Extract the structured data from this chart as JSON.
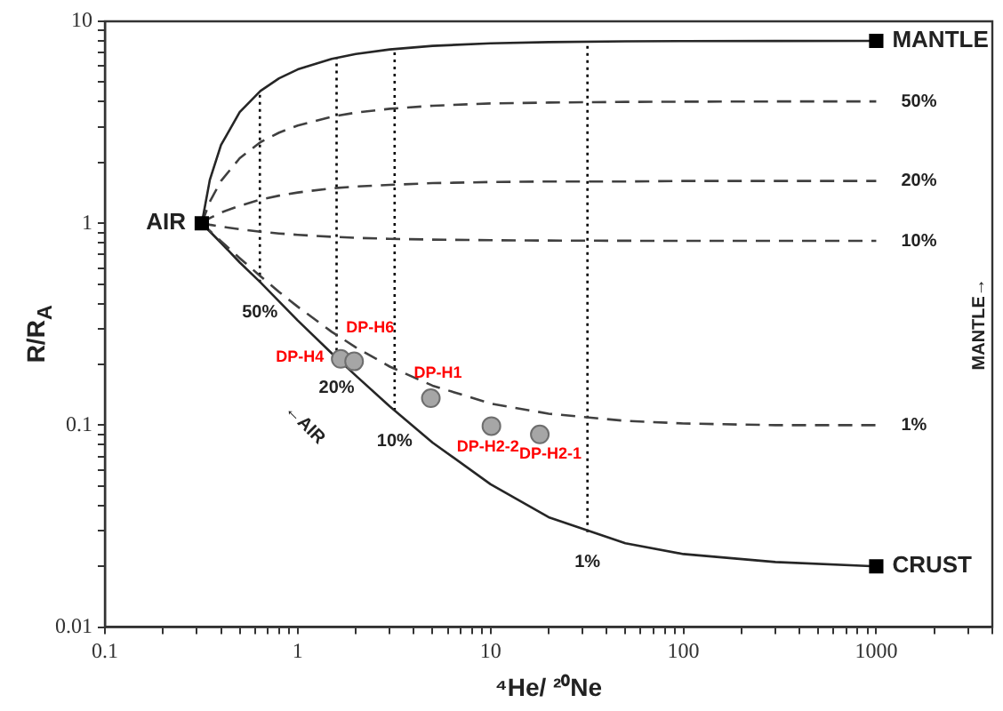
{
  "chart_data": {
    "type": "line",
    "xlabel": "⁴He/ ²⁰Ne",
    "ylabel": "R/R$_{A}$",
    "log": "xy",
    "grid": false,
    "legend": false,
    "xlim": [
      0.1,
      4000
    ],
    "ylim": [
      0.01,
      10
    ],
    "xticks": [
      0.1,
      {
        "value": 0.2,
        "label": null
      },
      {
        "value": 0.3,
        "label": null
      },
      {
        "value": 0.4,
        "label": null
      },
      {
        "value": 0.5,
        "label": null
      },
      {
        "value": 0.6,
        "label": null
      },
      {
        "value": 0.7,
        "label": null
      },
      {
        "value": 0.8,
        "label": null
      },
      {
        "value": 0.9,
        "label": null
      },
      1,
      {
        "value": 2,
        "label": null
      },
      {
        "value": 3,
        "label": null
      },
      {
        "value": 4,
        "label": null
      },
      {
        "value": 5,
        "label": null
      },
      {
        "value": 6,
        "label": null
      },
      {
        "value": 7,
        "label": null
      },
      {
        "value": 8,
        "label": null
      },
      {
        "value": 9,
        "label": null
      },
      10,
      {
        "value": 20,
        "label": null
      },
      {
        "value": 30,
        "label": null
      },
      {
        "value": 40,
        "label": null
      },
      {
        "value": 50,
        "label": null
      },
      {
        "value": 60,
        "label": null
      },
      {
        "value": 70,
        "label": null
      },
      {
        "value": 80,
        "label": null
      },
      {
        "value": 90,
        "label": null
      },
      100,
      {
        "value": 200,
        "label": null
      },
      {
        "value": 300,
        "label": null
      },
      {
        "value": 400,
        "label": null
      },
      {
        "value": 500,
        "label": null
      },
      {
        "value": 600,
        "label": null
      },
      {
        "value": 700,
        "label": null
      },
      {
        "value": 800,
        "label": null
      },
      {
        "value": 900,
        "label": null
      },
      1000,
      {
        "value": 2000,
        "label": null
      },
      {
        "value": 3000,
        "label": null
      },
      {
        "value": 4000,
        "label": null
      }
    ],
    "yticks": [
      0.01,
      {
        "value": 0.02,
        "label": null
      },
      {
        "value": 0.03,
        "label": null
      },
      {
        "value": 0.04,
        "label": null
      },
      {
        "value": 0.05,
        "label": null
      },
      {
        "value": 0.06,
        "label": null
      },
      {
        "value": 0.07,
        "label": null
      },
      {
        "value": 0.08,
        "label": null
      },
      {
        "value": 0.09,
        "label": null
      },
      0.1,
      {
        "value": 0.2,
        "label": null
      },
      {
        "value": 0.3,
        "label": null
      },
      {
        "value": 0.4,
        "label": null
      },
      {
        "value": 0.5,
        "label": null
      },
      {
        "value": 0.6,
        "label": null
      },
      {
        "value": 0.7,
        "label": null
      },
      {
        "value": 0.8,
        "label": null
      },
      {
        "value": 0.9,
        "label": null
      },
      1,
      {
        "value": 2,
        "label": null
      },
      {
        "value": 3,
        "label": null
      },
      {
        "value": 4,
        "label": null
      },
      {
        "value": 5,
        "label": null
      },
      {
        "value": 6,
        "label": null
      },
      {
        "value": 7,
        "label": null
      },
      {
        "value": 8,
        "label": null
      },
      {
        "value": 9,
        "label": null
      },
      10
    ],
    "series": [
      {
        "color": "#262626",
        "line_style": "solid",
        "marker": "none",
        "x": [
          0.318,
          0.35,
          0.4,
          0.5,
          0.64,
          0.8,
          1,
          1.5,
          2,
          3,
          5,
          10,
          20,
          50,
          100,
          300,
          1000
        ],
        "values": [
          1,
          1.64,
          2.44,
          3.55,
          4.52,
          5.22,
          5.78,
          6.52,
          6.89,
          7.26,
          7.56,
          7.78,
          7.89,
          7.96,
          7.98,
          7.99,
          8
        ]
      },
      {
        "name": "50%",
        "color": "#404040",
        "line_style": "dashed",
        "marker": "none",
        "x": [
          0.318,
          0.35,
          0.4,
          0.5,
          0.64,
          0.8,
          1,
          1.5,
          2,
          3,
          5,
          10,
          20,
          50,
          100,
          300,
          1000
        ],
        "values": [
          1,
          1.28,
          1.62,
          2.1,
          2.52,
          2.81,
          3.05,
          3.37,
          3.53,
          3.69,
          3.82,
          3.92,
          3.96,
          3.99,
          4,
          4.01,
          4.01
        ]
      },
      {
        "name": "20%",
        "color": "#404040",
        "line_style": "dashed",
        "marker": "none",
        "x": [
          0.318,
          0.35,
          0.4,
          0.5,
          0.64,
          0.8,
          1,
          1.5,
          2,
          3,
          5,
          10,
          20,
          50,
          100,
          300,
          1000
        ],
        "values": [
          1,
          1.06,
          1.13,
          1.22,
          1.31,
          1.37,
          1.42,
          1.49,
          1.52,
          1.55,
          1.58,
          1.6,
          1.61,
          1.61,
          1.62,
          1.62,
          1.62
        ]
      },
      {
        "name": "10%",
        "color": "#404040",
        "line_style": "dashed",
        "marker": "none",
        "x": [
          0.318,
          0.35,
          0.4,
          0.5,
          0.64,
          0.8,
          1,
          1.5,
          2,
          3,
          5,
          10,
          20,
          50,
          100,
          300,
          1000
        ],
        "values": [
          1,
          0.983,
          0.963,
          0.934,
          0.908,
          0.89,
          0.876,
          0.857,
          0.847,
          0.837,
          0.83,
          0.824,
          0.821,
          0.819,
          0.818,
          0.818,
          0.818
        ]
      },
      {
        "name": "1%",
        "color": "#404040",
        "line_style": "dashed",
        "marker": "none",
        "x": [
          0.318,
          0.35,
          0.4,
          0.5,
          0.64,
          0.8,
          1,
          1.5,
          2,
          3,
          5,
          10,
          20,
          50,
          100,
          300,
          1000
        ],
        "values": [
          1,
          0.918,
          0.815,
          0.672,
          0.547,
          0.457,
          0.386,
          0.29,
          0.243,
          0.195,
          0.157,
          0.128,
          0.114,
          0.105,
          0.102,
          0.1,
          0.1
        ]
      },
      {
        "color": "#262626",
        "line_style": "solid",
        "marker": "none",
        "x": [
          0.318,
          0.35,
          0.4,
          0.5,
          0.64,
          0.8,
          1,
          1.5,
          2,
          3,
          5,
          10,
          20,
          50,
          100,
          300,
          1000
        ],
        "values": [
          1,
          0.91,
          0.8,
          0.64,
          0.51,
          0.41,
          0.33,
          0.227,
          0.176,
          0.124,
          0.082,
          0.051,
          0.035,
          0.026,
          0.023,
          0.021,
          0.02
        ]
      },
      {
        "name": "50%",
        "color": "#000000",
        "line_style": "dotted",
        "marker": "none",
        "x": [
          0.636,
          0.636
        ],
        "values": [
          0.51,
          4.5
        ]
      },
      {
        "name": "20%",
        "color": "#000000",
        "line_style": "dotted",
        "marker": "none",
        "x": [
          1.59,
          1.59
        ],
        "values": [
          0.216,
          6.6
        ]
      },
      {
        "name": "10%",
        "color": "#000000",
        "line_style": "dotted",
        "marker": "none",
        "x": [
          3.18,
          3.18
        ],
        "values": [
          0.118,
          7.3
        ]
      },
      {
        "name": "1%",
        "color": "#000000",
        "line_style": "dotted",
        "marker": "none",
        "x": [
          31.8,
          31.8
        ],
        "values": [
          0.0295,
          7.93
        ]
      },
      {
        "name": "AIR",
        "type": "scatter",
        "color": "#000000",
        "marker": "square",
        "x": [
          0.318
        ],
        "values": [
          1
        ]
      },
      {
        "name": "MANTLE",
        "type": "scatter",
        "color": "#000000",
        "marker": "square",
        "x": [
          1000
        ],
        "values": [
          8
        ]
      },
      {
        "name": "CRUST",
        "type": "scatter",
        "color": "#000000",
        "marker": "square",
        "x": [
          1000
        ],
        "values": [
          0.02
        ]
      },
      {
        "type": "scatter",
        "color": "#a6a6a6",
        "marker": "circle",
        "x": [
          1.67,
          1.96,
          4.9,
          10.1,
          18
        ],
        "values": [
          0.213,
          0.207,
          0.136,
          0.099,
          0.09
        ],
        "value_labels": [
          "DP-H4",
          "DP-H6",
          "DP-H1",
          "DP-H2-2",
          "DP-H2-1"
        ]
      }
    ],
    "annotations": [
      "←AIR",
      "MANTLE→"
    ]
  }
}
